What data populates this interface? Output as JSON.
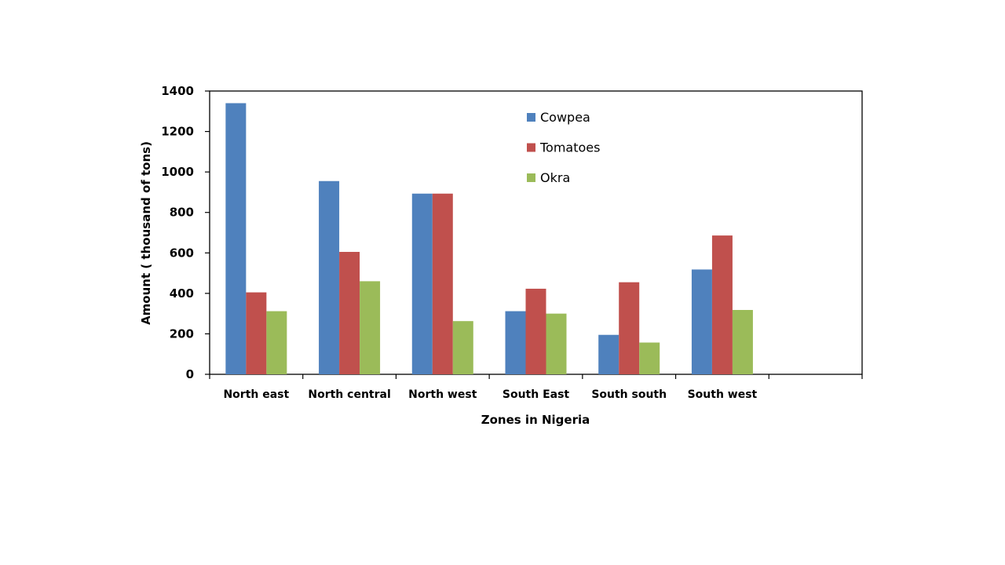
{
  "chart_data": {
    "type": "bar",
    "title": "",
    "xlabel": "Zones in Nigeria",
    "ylabel": "Amount ( thousand of tons)",
    "ylim": [
      0,
      1400
    ],
    "yticks": [
      0,
      200,
      400,
      600,
      800,
      1000,
      1200,
      1400
    ],
    "grid": false,
    "legend_position": "top-center",
    "categories": [
      "North east",
      "North central",
      "North west",
      "South East",
      "South south",
      "South west",
      ""
    ],
    "series": [
      {
        "name": "Cowpea",
        "color": "#4F81BD",
        "values": [
          1340,
          955,
          893,
          312,
          195,
          518,
          null
        ]
      },
      {
        "name": "Tomatoes",
        "color": "#C0504D",
        "values": [
          405,
          605,
          893,
          423,
          455,
          686,
          null
        ]
      },
      {
        "name": "Okra",
        "color": "#9BBB59",
        "values": [
          312,
          460,
          263,
          300,
          157,
          318,
          null
        ]
      }
    ]
  }
}
